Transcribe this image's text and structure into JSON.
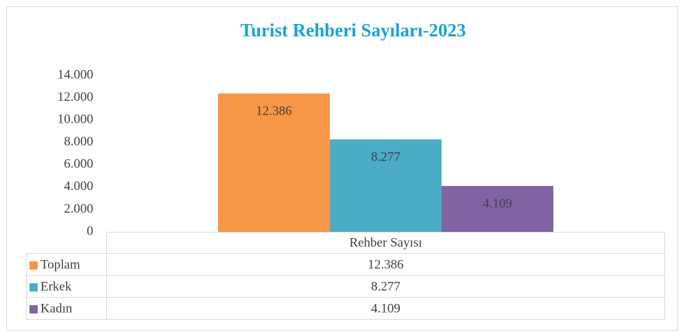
{
  "chart_data": {
    "type": "bar",
    "title": "Turist Rehberi Sayıları-2023",
    "categories": [
      "Rehber Sayısı"
    ],
    "series": [
      {
        "name": "Toplam",
        "color": "#f79646",
        "values": [
          12386
        ],
        "value_labels": [
          "12.386"
        ]
      },
      {
        "name": "Erkek",
        "color": "#4bacc6",
        "values": [
          8277
        ],
        "value_labels": [
          "8.277"
        ]
      },
      {
        "name": "Kadın",
        "color": "#8064a2",
        "values": [
          4109
        ],
        "value_labels": [
          "4.109"
        ]
      }
    ],
    "ylim": [
      0,
      14000
    ],
    "yticks": [
      0,
      {
        "value": 2000,
        "label": "2.000"
      },
      {
        "value": 4000,
        "label": "4.000"
      },
      {
        "value": 6000,
        "label": "6.000"
      },
      {
        "value": 8000,
        "label": "8.000"
      },
      {
        "value": 10000,
        "label": "10.000"
      },
      {
        "value": 12000,
        "label": "12.000"
      },
      {
        "value": 14000,
        "label": "14.000"
      }
    ],
    "grid": false,
    "data_table": true
  }
}
